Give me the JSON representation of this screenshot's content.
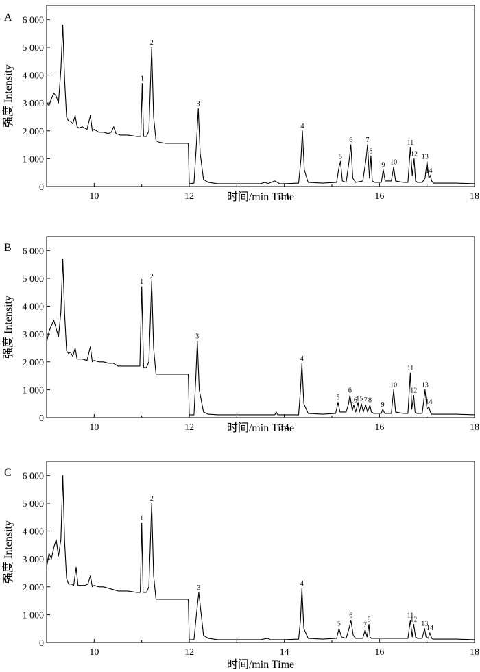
{
  "chart_data": [
    {
      "type": "line",
      "panel": "A",
      "xlabel": "时间/min  Time",
      "ylabel": "强度  Intensity",
      "xlim": [
        9,
        18
      ],
      "ylim": [
        0,
        6500
      ],
      "xticks": [
        10,
        12,
        14,
        16,
        18
      ],
      "xtick_labels": [
        "10",
        "12",
        "14",
        "16",
        "18"
      ],
      "yticks": [
        0,
        1000,
        2000,
        3000,
        4000,
        5000,
        6000
      ],
      "ytick_labels": [
        "0",
        "1 000",
        "2 000",
        "3 000",
        "4 000",
        "5 000",
        "6 000"
      ],
      "grid": false,
      "x": [
        9.0,
        9.05,
        9.1,
        9.15,
        9.2,
        9.25,
        9.3,
        9.34,
        9.38,
        9.42,
        9.46,
        9.5,
        9.55,
        9.6,
        9.64,
        9.68,
        9.75,
        9.85,
        9.92,
        9.96,
        10.0,
        10.1,
        10.2,
        10.3,
        10.36,
        10.41,
        10.46,
        10.55,
        10.7,
        10.9,
        10.98,
        11.01,
        11.04,
        11.1,
        11.15,
        11.21,
        11.25,
        11.3,
        11.35,
        11.5,
        11.7,
        11.9,
        11.98,
        12.0,
        12.1,
        12.15,
        12.19,
        12.23,
        12.3,
        12.4,
        12.6,
        13.0,
        13.5,
        13.6,
        13.65,
        13.8,
        13.85,
        13.9,
        14.0,
        14.3,
        14.35,
        14.38,
        14.42,
        14.5,
        14.8,
        15.1,
        15.15,
        15.18,
        15.22,
        15.3,
        15.36,
        15.4,
        15.44,
        15.5,
        15.65,
        15.72,
        15.75,
        15.79,
        15.82,
        15.85,
        15.9,
        16.04,
        16.08,
        16.12,
        16.25,
        16.3,
        16.34,
        16.5,
        16.6,
        16.65,
        16.69,
        16.73,
        16.76,
        16.8,
        16.9,
        16.96,
        17.0,
        17.04,
        17.07,
        17.1,
        17.14,
        17.3,
        17.6,
        18.0
      ],
      "values": [
        3000,
        2900,
        3150,
        3350,
        3250,
        3000,
        4200,
        5800,
        3800,
        2500,
        2350,
        2350,
        2250,
        2550,
        2150,
        2100,
        2150,
        2050,
        2550,
        2000,
        2050,
        1950,
        1950,
        1900,
        1950,
        2150,
        1900,
        1850,
        1850,
        1800,
        1800,
        3700,
        1800,
        1800,
        2000,
        5000,
        2500,
        1650,
        1600,
        1550,
        1550,
        1550,
        1550,
        100,
        120,
        1500,
        2800,
        1200,
        250,
        150,
        100,
        100,
        100,
        150,
        100,
        200,
        150,
        100,
        100,
        120,
        1000,
        2000,
        600,
        150,
        120,
        150,
        700,
        900,
        200,
        150,
        900,
        1500,
        300,
        150,
        200,
        1000,
        1500,
        300,
        1100,
        200,
        150,
        150,
        600,
        200,
        200,
        700,
        200,
        150,
        150,
        1400,
        400,
        1000,
        200,
        150,
        150,
        300,
        900,
        300,
        400,
        200,
        120,
        120,
        120,
        100
      ],
      "peak_labels": [
        {
          "label": "1",
          "x": 11.01,
          "y": 3700
        },
        {
          "label": "2",
          "x": 11.21,
          "y": 5000
        },
        {
          "label": "3",
          "x": 12.19,
          "y": 2800
        },
        {
          "label": "4",
          "x": 14.38,
          "y": 2000
        },
        {
          "label": "5",
          "x": 15.18,
          "y": 900
        },
        {
          "label": "6",
          "x": 15.4,
          "y": 1500
        },
        {
          "label": "7",
          "x": 15.75,
          "y": 1500
        },
        {
          "label": "8",
          "x": 15.82,
          "y": 1100
        },
        {
          "label": "9",
          "x": 16.08,
          "y": 600
        },
        {
          "label": "10",
          "x": 16.3,
          "y": 700
        },
        {
          "label": "11",
          "x": 16.65,
          "y": 1400
        },
        {
          "label": "12",
          "x": 16.73,
          "y": 1000
        },
        {
          "label": "13",
          "x": 16.96,
          "y": 900
        },
        {
          "label": "14",
          "x": 17.04,
          "y": 400
        }
      ]
    },
    {
      "type": "line",
      "panel": "B",
      "xlabel": "时间/min  Time",
      "ylabel": "强度  Intensity",
      "xlim": [
        9,
        18
      ],
      "ylim": [
        0,
        6500
      ],
      "xticks": [
        10,
        12,
        14,
        16,
        18
      ],
      "xtick_labels": [
        "10",
        "12",
        "14",
        "16",
        "18"
      ],
      "yticks": [
        0,
        1000,
        2000,
        3000,
        4000,
        5000,
        6000
      ],
      "ytick_labels": [
        "0",
        "1 000",
        "2 000",
        "3 000",
        "4 000",
        "5 000",
        "6 000"
      ],
      "grid": false,
      "x": [
        9.0,
        9.05,
        9.1,
        9.15,
        9.2,
        9.25,
        9.3,
        9.34,
        9.38,
        9.42,
        9.46,
        9.5,
        9.55,
        9.6,
        9.64,
        9.68,
        9.75,
        9.85,
        9.92,
        9.96,
        10.0,
        10.1,
        10.2,
        10.3,
        10.4,
        10.5,
        10.7,
        10.9,
        10.96,
        11.0,
        11.04,
        11.1,
        11.15,
        11.21,
        11.25,
        11.3,
        11.35,
        11.5,
        11.7,
        11.9,
        11.98,
        12.0,
        12.1,
        12.14,
        12.17,
        12.21,
        12.3,
        12.4,
        12.6,
        13.0,
        13.5,
        13.8,
        13.83,
        13.86,
        14.0,
        14.3,
        14.34,
        14.37,
        14.41,
        14.5,
        14.8,
        15.08,
        15.13,
        15.17,
        15.3,
        15.35,
        15.38,
        15.43,
        15.46,
        15.5,
        15.55,
        15.58,
        15.62,
        15.66,
        15.71,
        15.75,
        15.8,
        15.83,
        15.88,
        16.04,
        16.07,
        16.11,
        16.25,
        16.3,
        16.34,
        16.5,
        16.6,
        16.65,
        16.68,
        16.72,
        16.75,
        16.79,
        16.9,
        16.96,
        17.0,
        17.04,
        17.07,
        17.1,
        17.14,
        17.3,
        17.6,
        18.0
      ],
      "values": [
        2700,
        3100,
        3300,
        3500,
        3200,
        2900,
        3800,
        5700,
        3700,
        2400,
        2300,
        2350,
        2200,
        2500,
        2100,
        2100,
        2100,
        2050,
        2550,
        2000,
        2050,
        2000,
        2000,
        1950,
        1950,
        1850,
        1850,
        1850,
        1850,
        4700,
        1800,
        1800,
        2000,
        4900,
        2500,
        1550,
        1550,
        1550,
        1550,
        1550,
        1550,
        100,
        100,
        1500,
        2750,
        1000,
        200,
        120,
        100,
        100,
        100,
        100,
        200,
        100,
        100,
        100,
        1000,
        1950,
        500,
        150,
        120,
        150,
        550,
        200,
        200,
        500,
        800,
        250,
        450,
        200,
        550,
        200,
        500,
        200,
        450,
        200,
        450,
        200,
        150,
        150,
        300,
        150,
        150,
        1000,
        200,
        150,
        150,
        1600,
        300,
        800,
        200,
        150,
        150,
        1000,
        300,
        400,
        200,
        120,
        120,
        120,
        120,
        100
      ],
      "peak_labels": [
        {
          "label": "1",
          "x": 11.0,
          "y": 4700
        },
        {
          "label": "2",
          "x": 11.21,
          "y": 4900
        },
        {
          "label": "3",
          "x": 12.17,
          "y": 2750
        },
        {
          "label": "4",
          "x": 14.37,
          "y": 1950
        },
        {
          "label": "5",
          "x": 15.13,
          "y": 550
        },
        {
          "label": "6",
          "x": 15.38,
          "y": 800
        },
        {
          "label": "16",
          "x": 15.46,
          "y": 450
        },
        {
          "label": "15",
          "x": 15.58,
          "y": 500
        },
        {
          "label": "7",
          "x": 15.71,
          "y": 450
        },
        {
          "label": "8",
          "x": 15.8,
          "y": 450
        },
        {
          "label": "9",
          "x": 16.07,
          "y": 300
        },
        {
          "label": "10",
          "x": 16.3,
          "y": 1000
        },
        {
          "label": "11",
          "x": 16.65,
          "y": 1600
        },
        {
          "label": "12",
          "x": 16.72,
          "y": 800
        },
        {
          "label": "13",
          "x": 16.96,
          "y": 1000
        },
        {
          "label": "14",
          "x": 17.04,
          "y": 400
        }
      ]
    },
    {
      "type": "line",
      "panel": "C",
      "xlabel": "时间/min  Time",
      "ylabel": "强度  Intensity",
      "xlim": [
        9,
        18
      ],
      "ylim": [
        0,
        6500
      ],
      "xticks": [
        10,
        12,
        14,
        16,
        18
      ],
      "xtick_labels": [
        "10",
        "12",
        "14",
        "16",
        "18"
      ],
      "yticks": [
        0,
        1000,
        2000,
        3000,
        4000,
        5000,
        6000
      ],
      "ytick_labels": [
        "0",
        "1 000",
        "2 000",
        "3 000",
        "4 000",
        "5 000",
        "6 000"
      ],
      "grid": false,
      "x": [
        9.0,
        9.05,
        9.1,
        9.15,
        9.2,
        9.25,
        9.3,
        9.34,
        9.38,
        9.42,
        9.46,
        9.52,
        9.57,
        9.62,
        9.66,
        9.7,
        9.8,
        9.87,
        9.92,
        9.96,
        10.0,
        10.1,
        10.2,
        10.3,
        10.4,
        10.5,
        10.7,
        10.9,
        10.97,
        11.0,
        11.03,
        11.1,
        11.15,
        11.21,
        11.25,
        11.3,
        11.35,
        11.5,
        11.7,
        11.9,
        11.98,
        12.0,
        12.1,
        12.15,
        12.2,
        12.24,
        12.3,
        12.4,
        12.6,
        13.0,
        13.5,
        13.65,
        13.7,
        14.0,
        14.3,
        14.34,
        14.37,
        14.41,
        14.5,
        14.8,
        15.1,
        15.15,
        15.2,
        15.3,
        15.36,
        15.4,
        15.45,
        15.5,
        15.65,
        15.7,
        15.74,
        15.78,
        15.8,
        15.83,
        15.9,
        16.2,
        16.5,
        16.6,
        16.65,
        16.69,
        16.72,
        16.76,
        16.8,
        16.9,
        16.95,
        16.98,
        17.03,
        17.06,
        17.1,
        17.14,
        17.3,
        17.6,
        18.0
      ],
      "values": [
        2700,
        3200,
        3000,
        3400,
        3700,
        3100,
        3700,
        6000,
        3600,
        2300,
        2100,
        2100,
        2050,
        2700,
        2050,
        2050,
        2050,
        2100,
        2400,
        2000,
        2050,
        2000,
        2000,
        1950,
        1900,
        1850,
        1850,
        1800,
        1800,
        4300,
        1800,
        1800,
        2000,
        5000,
        2400,
        1550,
        1550,
        1550,
        1550,
        1550,
        1550,
        100,
        100,
        1000,
        1800,
        1200,
        250,
        150,
        100,
        100,
        100,
        150,
        100,
        100,
        120,
        800,
        1950,
        500,
        150,
        120,
        150,
        500,
        200,
        150,
        500,
        800,
        250,
        150,
        150,
        450,
        200,
        650,
        200,
        150,
        150,
        150,
        150,
        150,
        800,
        200,
        650,
        200,
        150,
        150,
        500,
        200,
        150,
        350,
        150,
        120,
        120,
        120,
        100
      ],
      "peak_labels": [
        {
          "label": "1",
          "x": 11.0,
          "y": 4300
        },
        {
          "label": "2",
          "x": 11.21,
          "y": 5000
        },
        {
          "label": "3",
          "x": 12.2,
          "y": 1800
        },
        {
          "label": "4",
          "x": 14.37,
          "y": 1950
        },
        {
          "label": "5",
          "x": 15.15,
          "y": 500
        },
        {
          "label": "6",
          "x": 15.4,
          "y": 800
        },
        {
          "label": "7",
          "x": 15.7,
          "y": 450
        },
        {
          "label": "8",
          "x": 15.78,
          "y": 650
        },
        {
          "label": "11",
          "x": 16.65,
          "y": 800
        },
        {
          "label": "12",
          "x": 16.72,
          "y": 650
        },
        {
          "label": "13",
          "x": 16.95,
          "y": 500
        },
        {
          "label": "14",
          "x": 17.06,
          "y": 350
        }
      ]
    }
  ]
}
